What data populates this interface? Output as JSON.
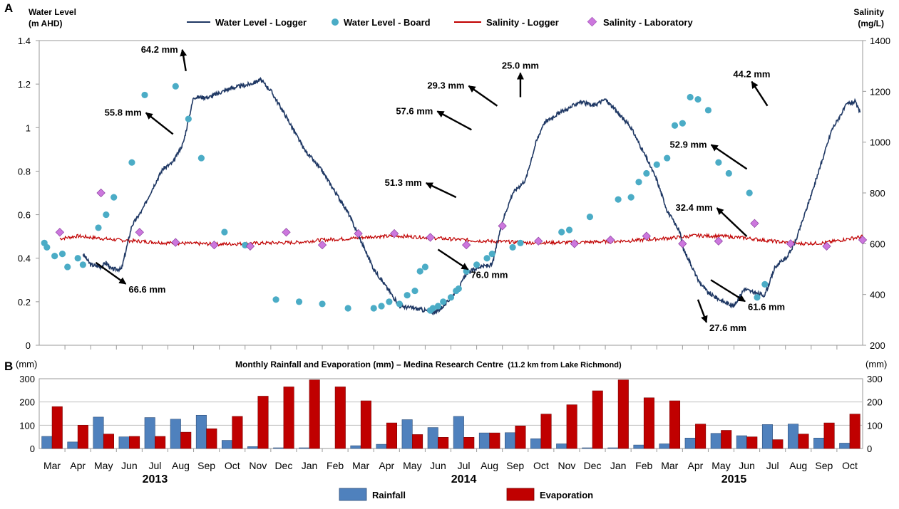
{
  "chart_data": [
    {
      "type": "line",
      "panel_label": "A",
      "left_axis_label": [
        "Water Level",
        "(m AHD)"
      ],
      "right_axis_label": [
        "Salinity",
        "(mg/L)"
      ],
      "y_left_ticks": [
        "0",
        "0.2",
        "0.4",
        "0.6",
        "0.8",
        "1",
        "1.2",
        "1.4"
      ],
      "y_right_ticks": [
        "200",
        "400",
        "600",
        "800",
        "1000",
        "1200",
        "1400"
      ],
      "ylim_left": [
        0,
        1.4
      ],
      "ylim_right": [
        200,
        1400
      ],
      "x_range_months": [
        0,
        32
      ],
      "colors": {
        "water_logger": "#1f3864",
        "water_board": "#4bacc6",
        "salinity_logger": "#c00000",
        "salinity_lab": "#cc77dd"
      },
      "legend": [
        "Water Level  - Logger",
        "Water Level  -  Board",
        "Salinity - Logger",
        "Salinity - Laboratory"
      ],
      "series": [
        {
          "name": "Water Level  - Logger",
          "axis": "left",
          "x": [
            1.7,
            2.0,
            2.4,
            2.6,
            2.8,
            3.2,
            3.6,
            4.0,
            4.4,
            4.8,
            5.2,
            5.6,
            6.0,
            6.6,
            7.4,
            8.2,
            8.6,
            9.0,
            9.6,
            10.3,
            11.0,
            12.0,
            13.0,
            13.6,
            14.0,
            14.6,
            15.0,
            15.4,
            15.6,
            15.8,
            16.0,
            16.3,
            16.6,
            17.1,
            17.6,
            18.0,
            18.4,
            18.9,
            19.3,
            19.6,
            20.1,
            20.6,
            21.0,
            21.5,
            22.0,
            22.4,
            23.0,
            23.6,
            24.0,
            24.4,
            24.9,
            25.0,
            25.3,
            25.6,
            26.0,
            26.6,
            27.0,
            27.4,
            27.8,
            28.2,
            28.6,
            28.8,
            29.1,
            29.4,
            29.8,
            30.3,
            30.8,
            31.4,
            31.7,
            31.9
          ],
          "y": [
            0.42,
            0.37,
            0.36,
            0.38,
            0.35,
            0.35,
            0.55,
            0.62,
            0.72,
            0.81,
            0.84,
            0.93,
            1.14,
            1.14,
            1.18,
            1.2,
            1.22,
            1.17,
            1.05,
            0.9,
            0.8,
            0.61,
            0.35,
            0.25,
            0.18,
            0.17,
            0.16,
            0.15,
            0.17,
            0.19,
            0.22,
            0.26,
            0.33,
            0.36,
            0.37,
            0.57,
            0.7,
            0.76,
            0.93,
            1.02,
            1.06,
            1.09,
            1.12,
            1.1,
            1.13,
            1.08,
            1.0,
            0.86,
            0.76,
            0.62,
            0.52,
            0.45,
            0.38,
            0.3,
            0.24,
            0.2,
            0.18,
            0.26,
            0.24,
            0.23,
            0.36,
            0.38,
            0.41,
            0.48,
            0.62,
            0.8,
            0.99,
            1.11,
            1.12,
            1.07
          ]
        },
        {
          "name": "Water Level  -  Board",
          "axis": "left",
          "x": [
            0.2,
            0.3,
            0.6,
            0.9,
            1.1,
            1.5,
            1.7,
            2.3,
            2.6,
            2.9,
            3.6,
            4.1,
            5.3,
            5.8,
            6.3,
            7.2,
            8.0,
            9.2,
            10.1,
            11.0,
            12.0,
            13.0,
            13.3,
            13.6,
            14.0,
            14.3,
            14.6,
            14.8,
            15.0,
            15.2,
            15.3,
            15.5,
            15.7,
            16.0,
            16.2,
            16.3,
            16.6,
            17.0,
            17.4,
            17.6,
            18.4,
            18.7,
            20.3,
            20.6,
            21.4,
            22.5,
            23.0,
            23.3,
            23.6,
            24.0,
            24.4,
            24.7,
            25.0,
            25.3,
            25.6,
            26.0,
            26.4,
            26.8,
            27.6,
            27.9,
            28.2
          ],
          "y": [
            0.47,
            0.45,
            0.41,
            0.42,
            0.36,
            0.4,
            0.37,
            0.54,
            0.6,
            0.68,
            0.84,
            1.15,
            1.19,
            1.04,
            0.86,
            0.52,
            0.46,
            0.21,
            0.2,
            0.19,
            0.17,
            0.17,
            0.18,
            0.2,
            0.19,
            0.23,
            0.25,
            0.34,
            0.36,
            0.16,
            0.17,
            0.18,
            0.2,
            0.22,
            0.25,
            0.26,
            0.34,
            0.37,
            0.4,
            0.42,
            0.45,
            0.47,
            0.52,
            0.53,
            0.59,
            0.67,
            0.68,
            0.75,
            0.79,
            0.83,
            0.86,
            1.01,
            1.02,
            1.14,
            1.13,
            1.08,
            0.84,
            0.79,
            0.7,
            0.22,
            0.28
          ]
        },
        {
          "name": "Salinity - Logger",
          "axis": "right",
          "x": [
            0.8,
            1.5,
            3.0,
            5.0,
            7.0,
            8.5,
            10.0,
            11.0,
            12.0,
            13.0,
            14.0,
            15.0,
            16.0,
            17.0,
            19.0,
            21.0,
            23.0,
            24.5,
            25.5,
            26.5,
            27.5,
            28.5,
            29.5,
            30.5,
            31.5,
            32.0
          ],
          "y": [
            620,
            630,
            615,
            603,
            598,
            602,
            605,
            615,
            620,
            628,
            630,
            625,
            618,
            612,
            604,
            605,
            612,
            622,
            632,
            630,
            622,
            610,
            600,
            603,
            620,
            628
          ]
        },
        {
          "name": "Salinity - Laboratory",
          "axis": "right",
          "x": [
            0.8,
            2.4,
            3.9,
            5.3,
            6.8,
            8.2,
            9.6,
            11.0,
            12.4,
            13.8,
            15.2,
            16.6,
            18.0,
            19.4,
            20.8,
            22.2,
            23.6,
            25.0,
            26.4,
            27.8,
            29.2,
            30.6,
            32.0
          ],
          "y": [
            645,
            800,
            645,
            605,
            595,
            590,
            645,
            595,
            640,
            640,
            625,
            595,
            670,
            610,
            600,
            615,
            630,
            600,
            610,
            680,
            600,
            590,
            615
          ]
        }
      ],
      "annotations": [
        {
          "label": "66.6 mm",
          "x": 2.2,
          "y": 0.38
        },
        {
          "label": "55.8 mm",
          "x": 5.2,
          "y": 0.97
        },
        {
          "label": "64.2 mm",
          "x": 5.7,
          "y": 1.26
        },
        {
          "label": "51.3 mm",
          "x": 16.2,
          "y": 0.68
        },
        {
          "label": "57.6 mm",
          "x": 16.8,
          "y": 0.99
        },
        {
          "label": "29.3 mm",
          "x": 17.8,
          "y": 1.1
        },
        {
          "label": "76.0 mm",
          "x": 15.5,
          "y": 0.44
        },
        {
          "label": "25.0 mm",
          "x": 18.7,
          "y": 1.14
        },
        {
          "label": "52.9 mm",
          "x": 27.5,
          "y": 0.81
        },
        {
          "label": "32.4 mm",
          "x": 27.5,
          "y": 0.5
        },
        {
          "label": "44.2 mm",
          "x": 28.3,
          "y": 1.1
        },
        {
          "label": "27.6 mm",
          "x": 25.6,
          "y": 0.21
        },
        {
          "label": "61.6 mm",
          "x": 26.1,
          "y": 0.3
        }
      ],
      "grid": false
    },
    {
      "type": "bar",
      "panel_label": "B",
      "title_main": "Monthly Rainfall and Evaporation (mm)  – Medina Research Centre",
      "title_note": "(11.2 km from Lake Richmond)",
      "ylabel_left": "(mm)",
      "ylabel_right": "(mm)",
      "ylim": [
        0,
        300
      ],
      "y_ticks": [
        "0",
        "100",
        "200",
        "300"
      ],
      "categories": [
        "Mar",
        "Apr",
        "May",
        "Jun",
        "Jul",
        "Aug",
        "Sep",
        "Oct",
        "Nov",
        "Dec",
        "Jan",
        "Feb",
        "Mar",
        "Apr",
        "May",
        "Jun",
        "Jul",
        "Aug",
        "Sep",
        "Oct",
        "Nov",
        "Dec",
        "Jan",
        "Feb",
        "Mar",
        "Apr",
        "May",
        "Jun",
        "Jul",
        "Aug",
        "Sep",
        "Oct"
      ],
      "years": [
        {
          "label": "2013",
          "pos": 4
        },
        {
          "label": "2014",
          "pos": 16
        },
        {
          "label": "2015",
          "pos": 26.5
        }
      ],
      "colors": {
        "rainfall": "#4f81bd",
        "evaporation": "#c00000"
      },
      "series": [
        {
          "name": "Rainfall",
          "values": [
            52,
            28,
            135,
            50,
            133,
            126,
            143,
            35,
            8,
            3,
            3,
            0,
            12,
            18,
            124,
            90,
            138,
            67,
            68,
            42,
            20,
            3,
            3,
            15,
            20,
            45,
            65,
            55,
            103,
            105,
            45,
            23
          ]
        },
        {
          "name": "Evaporation",
          "values": [
            180,
            100,
            62,
            52,
            52,
            70,
            85,
            138,
            225,
            265,
            295,
            265,
            205,
            110,
            60,
            48,
            48,
            67,
            97,
            148,
            188,
            248,
            295,
            218,
            205,
            105,
            78,
            50,
            38,
            62,
            110,
            148
          ]
        }
      ],
      "legend": [
        "Rainfall",
        "Evaporation"
      ],
      "grid": true
    }
  ]
}
